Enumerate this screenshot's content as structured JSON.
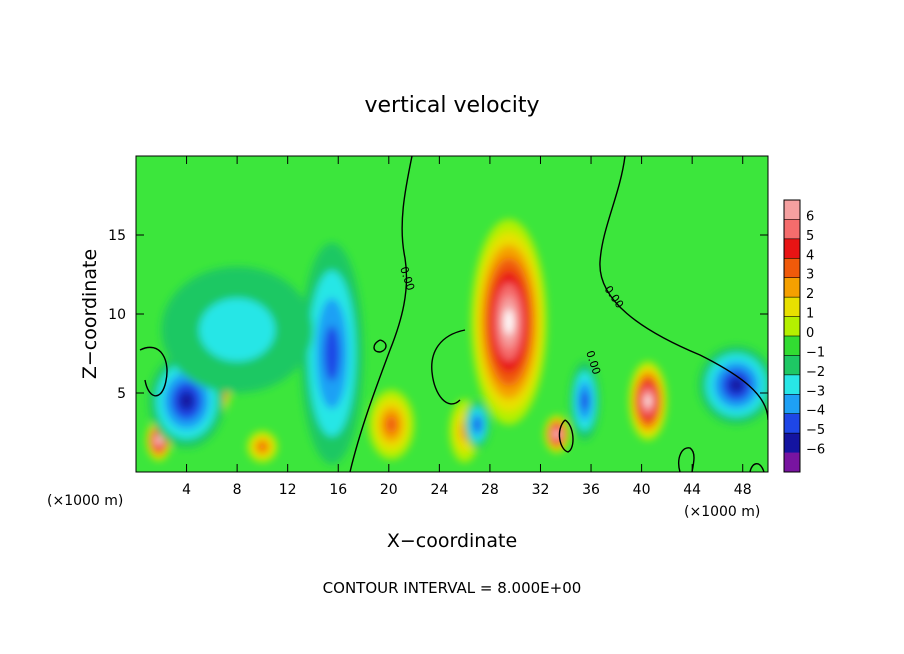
{
  "chart_data": {
    "type": "heatmap",
    "title": "vertical velocity",
    "xlabel": "X−coordinate",
    "ylabel": "Z−coordinate",
    "x_unit": "(×1000 m)",
    "y_unit": "(×1000 m)",
    "xlim": [
      0,
      50
    ],
    "ylim": [
      0,
      20
    ],
    "x_ticks": [
      4,
      8,
      12,
      16,
      20,
      24,
      28,
      32,
      36,
      40,
      44,
      48
    ],
    "y_ticks": [
      5,
      10,
      15
    ],
    "footer": "CONTOUR INTERVAL = 8.000E+00",
    "contour_label": "0.00",
    "colorbar": {
      "levels": [
        "6",
        "5",
        "4",
        "3",
        "2",
        "1",
        "0",
        "−1",
        "−2",
        "−3",
        "−4",
        "−5",
        "−6"
      ],
      "colors": [
        "#f5a0a0",
        "#f56c6c",
        "#e81414",
        "#f05a0a",
        "#f5a000",
        "#e8e000",
        "#b4f000",
        "#32dc32",
        "#1ec864",
        "#28e6e6",
        "#1ea0f5",
        "#1e46e6",
        "#1414a0",
        "#7814a0"
      ],
      "background_color": "#3ce63c"
    },
    "features": [
      {
        "kind": "updraft",
        "x": 29.5,
        "z": 9.5,
        "rx": 3.0,
        "rz": 6.5,
        "peak": 6
      },
      {
        "kind": "updraft",
        "x": 40.5,
        "z": 4.5,
        "rx": 1.5,
        "rz": 2.5,
        "peak": 6
      },
      {
        "kind": "updraft",
        "x": 6.6,
        "z": 5.2,
        "rx": 0.9,
        "rz": 1.5,
        "peak": 6
      },
      {
        "kind": "updraft",
        "x": 1.8,
        "z": 2.0,
        "rx": 1.0,
        "rz": 1.3,
        "peak": 6
      },
      {
        "kind": "updraft",
        "x": 33.3,
        "z": 2.4,
        "rx": 1.0,
        "rz": 1.2,
        "peak": 6
      },
      {
        "kind": "updraft",
        "x": 20.2,
        "z": 3.0,
        "rx": 1.8,
        "rz": 2.2,
        "peak": 4
      },
      {
        "kind": "updraft",
        "x": 10.0,
        "z": 1.6,
        "rx": 1.2,
        "rz": 1.0,
        "peak": 4
      },
      {
        "kind": "updraft",
        "x": 26.0,
        "z": 2.6,
        "rx": 1.2,
        "rz": 2.0,
        "peak": 3
      },
      {
        "kind": "downdraft",
        "x": 15.5,
        "z": 7.5,
        "rx": 2.5,
        "rz": 7.0,
        "peak": -4
      },
      {
        "kind": "downdraft",
        "x": 4.0,
        "z": 4.5,
        "rx": 3.0,
        "rz": 3.0,
        "peak": -5
      },
      {
        "kind": "downdraft",
        "x": 47.5,
        "z": 5.5,
        "rx": 3.0,
        "rz": 2.5,
        "peak": -5
      },
      {
        "kind": "downdraft",
        "x": 35.5,
        "z": 4.5,
        "rx": 1.2,
        "rz": 2.5,
        "peak": -4
      },
      {
        "kind": "downdraft",
        "x": 27.0,
        "z": 3.0,
        "rx": 1.0,
        "rz": 1.5,
        "peak": -4
      },
      {
        "kind": "downdraft",
        "x": 8.0,
        "z": 9.0,
        "rx": 6.0,
        "rz": 4.0,
        "peak": -2
      }
    ]
  }
}
